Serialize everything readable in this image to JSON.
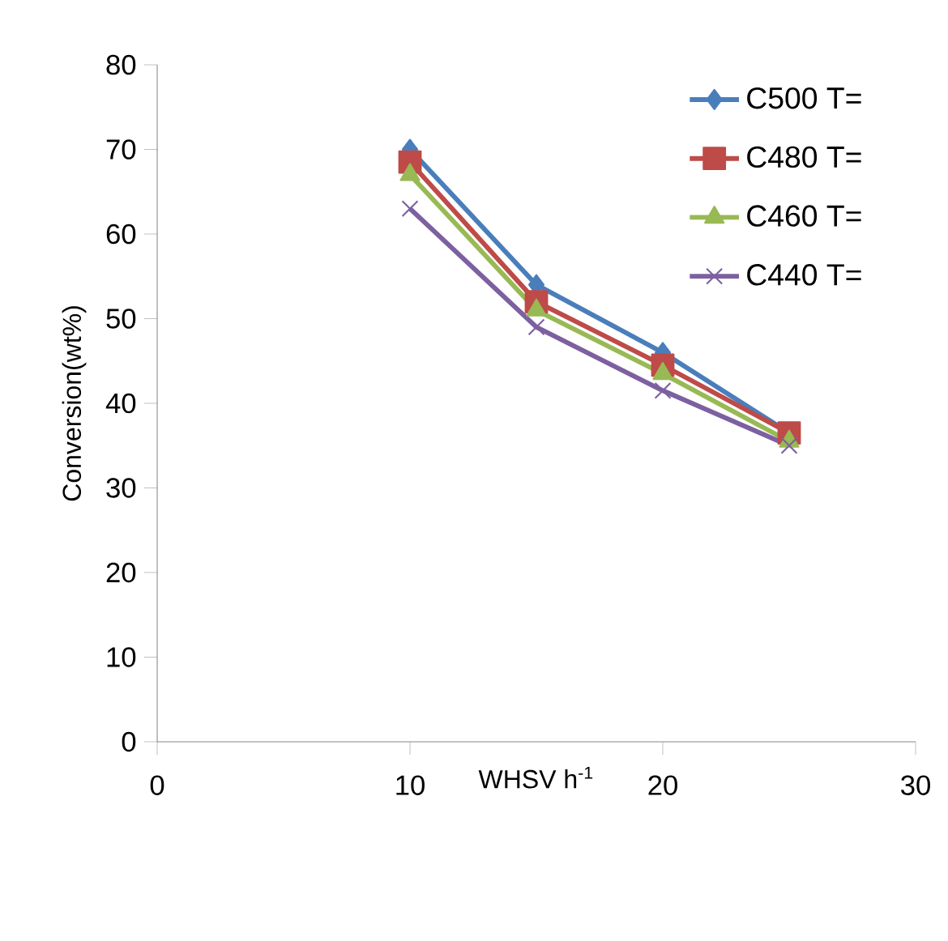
{
  "chart_data": {
    "type": "line",
    "xlabel": "WHSV h$^{-1}$",
    "ylabel": "Conversion(wt%)",
    "x": [
      10,
      15,
      20,
      25
    ],
    "series": [
      {
        "name": "C500 T=",
        "color": "#4a7ebb",
        "marker": "diamond",
        "values": [
          70,
          54,
          46,
          36.5
        ]
      },
      {
        "name": "C480 T=",
        "color": "#be4b48",
        "marker": "square",
        "values": [
          68.5,
          52,
          44.5,
          36.5
        ]
      },
      {
        "name": "C460 T=",
        "color": "#98b954",
        "marker": "triangle",
        "values": [
          67,
          51,
          43.5,
          35.5
        ]
      },
      {
        "name": "C440 T=",
        "color": "#7d60a0",
        "marker": "cross",
        "values": [
          63,
          49,
          41.5,
          35
        ]
      }
    ],
    "xlim": [
      0,
      30
    ],
    "xticks": [
      0,
      10,
      20,
      30
    ],
    "ylim": [
      0,
      80
    ],
    "yticks": [
      0,
      10,
      20,
      30,
      40,
      50,
      60,
      70,
      80
    ],
    "grid": false,
    "legend": "top right",
    "line_style": "solid"
  }
}
